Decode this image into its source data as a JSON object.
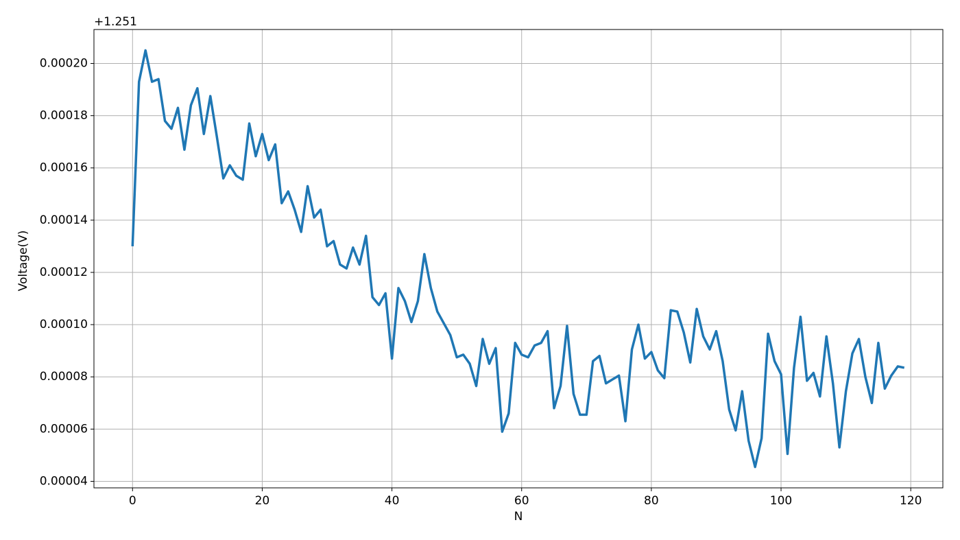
{
  "chart_data": {
    "type": "line",
    "x_label": "N",
    "y_label": "Voltage(V)",
    "offset_text": "+1.251",
    "x": [
      0,
      1,
      2,
      3,
      4,
      5,
      6,
      7,
      8,
      9,
      10,
      11,
      12,
      13,
      14,
      15,
      16,
      17,
      18,
      19,
      20,
      21,
      22,
      23,
      24,
      25,
      26,
      27,
      28,
      29,
      30,
      31,
      32,
      33,
      34,
      35,
      36,
      37,
      38,
      39,
      40,
      41,
      42,
      43,
      44,
      45,
      46,
      47,
      48,
      49,
      50,
      51,
      52,
      53,
      54,
      55,
      56,
      57,
      58,
      59,
      60,
      61,
      62,
      63,
      64,
      65,
      66,
      67,
      68,
      69,
      70,
      71,
      72,
      73,
      74,
      75,
      76,
      77,
      78,
      79,
      80,
      81,
      82,
      83,
      84,
      85,
      86,
      87,
      88,
      89,
      90,
      91,
      92,
      93,
      94,
      95,
      96,
      97,
      98,
      99,
      100,
      101,
      102,
      103,
      104,
      105,
      106,
      107,
      108,
      109,
      110,
      111,
      112,
      113,
      114,
      115,
      116,
      117,
      118,
      119
    ],
    "series": [
      {
        "color": "#1f77b4",
        "values": [
          0.00013,
          0.000193,
          0.000205,
          0.000193,
          0.000194,
          0.000178,
          0.000175,
          0.000183,
          0.000167,
          0.000184,
          0.0001905,
          0.000173,
          0.0001875,
          0.000172,
          0.000156,
          0.000161,
          0.000157,
          0.0001555,
          0.000177,
          0.0001645,
          0.000173,
          0.000163,
          0.000169,
          0.0001465,
          0.000151,
          0.000144,
          0.0001355,
          0.000153,
          0.000141,
          0.000144,
          0.00013,
          0.000132,
          0.000123,
          0.0001215,
          0.0001295,
          0.000123,
          0.000134,
          0.0001105,
          0.0001075,
          0.000112,
          8.7e-05,
          0.000114,
          0.000109,
          0.000101,
          0.000109,
          0.000127,
          0.000114,
          0.000105,
          0.0001005,
          9.6e-05,
          8.75e-05,
          8.85e-05,
          8.5e-05,
          7.65e-05,
          9.45e-05,
          8.5e-05,
          9.1e-05,
          5.9e-05,
          6.6e-05,
          9.3e-05,
          8.85e-05,
          8.75e-05,
          9.2e-05,
          9.3e-05,
          9.75e-05,
          6.8e-05,
          7.65e-05,
          9.95e-05,
          7.35e-05,
          6.55e-05,
          6.55e-05,
          8.6e-05,
          8.8e-05,
          7.75e-05,
          7.9e-05,
          8.05e-05,
          6.3e-05,
          9.05e-05,
          0.0001,
          8.7e-05,
          8.95e-05,
          8.25e-05,
          7.95e-05,
          0.0001055,
          0.000105,
          9.7e-05,
          8.55e-05,
          0.000106,
          9.55e-05,
          9.05e-05,
          9.75e-05,
          8.6e-05,
          6.75e-05,
          5.95e-05,
          7.45e-05,
          5.55e-05,
          4.55e-05,
          5.65e-05,
          9.65e-05,
          8.6e-05,
          8.1e-05,
          5.05e-05,
          8.35e-05,
          0.000103,
          7.85e-05,
          8.15e-05,
          7.25e-05,
          9.55e-05,
          7.75e-05,
          5.3e-05,
          7.45e-05,
          8.9e-05,
          9.45e-05,
          8e-05,
          7e-05,
          9.3e-05,
          7.55e-05,
          8.05e-05,
          8.4e-05,
          8.35e-05
        ]
      }
    ],
    "xlim": [
      -5.95,
      124.95
    ],
    "xticks": [
      0,
      20,
      40,
      60,
      80,
      100,
      120
    ],
    "ylim": [
      3.75e-05,
      0.000213
    ],
    "yticks": [
      {
        "value": 4e-05,
        "label": "0.00004"
      },
      {
        "value": 6e-05,
        "label": "0.00006"
      },
      {
        "value": 8e-05,
        "label": "0.00008"
      },
      {
        "value": 0.0001,
        "label": "0.00010"
      },
      {
        "value": 0.00012,
        "label": "0.00012"
      },
      {
        "value": 0.00014,
        "label": "0.00014"
      },
      {
        "value": 0.00016,
        "label": "0.00016"
      },
      {
        "value": 0.00018,
        "label": "0.00018"
      },
      {
        "value": 0.0002,
        "label": "0.00020"
      }
    ],
    "grid": true
  }
}
